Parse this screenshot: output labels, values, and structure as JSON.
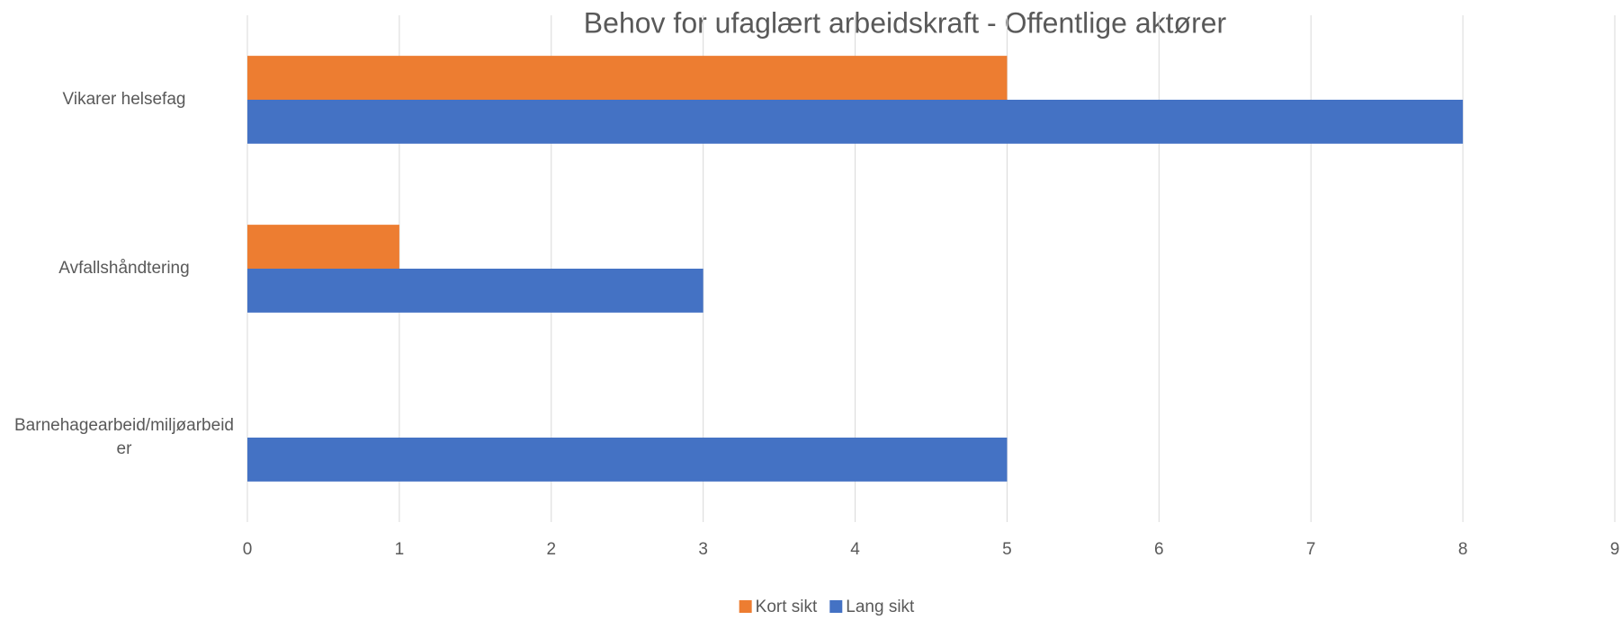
{
  "chart_data": {
    "type": "bar",
    "orientation": "horizontal",
    "title": "Behov for ufaglært arbeidskraft - Offentlige aktører",
    "categories": [
      "Vikarer helsefag",
      "Avfallshåndtering",
      "Barnehagearbeid/miljøarbeider"
    ],
    "series": [
      {
        "name": "Kort sikt",
        "color": "#ed7d31",
        "values": [
          5,
          1,
          0
        ]
      },
      {
        "name": "Lang sikt",
        "color": "#4472c4",
        "values": [
          8,
          3,
          5
        ]
      }
    ],
    "xlim": [
      0,
      9
    ],
    "xticks": [
      0,
      1,
      2,
      3,
      4,
      5,
      6,
      7,
      8,
      9
    ],
    "grid": true,
    "legend": "bottom"
  }
}
